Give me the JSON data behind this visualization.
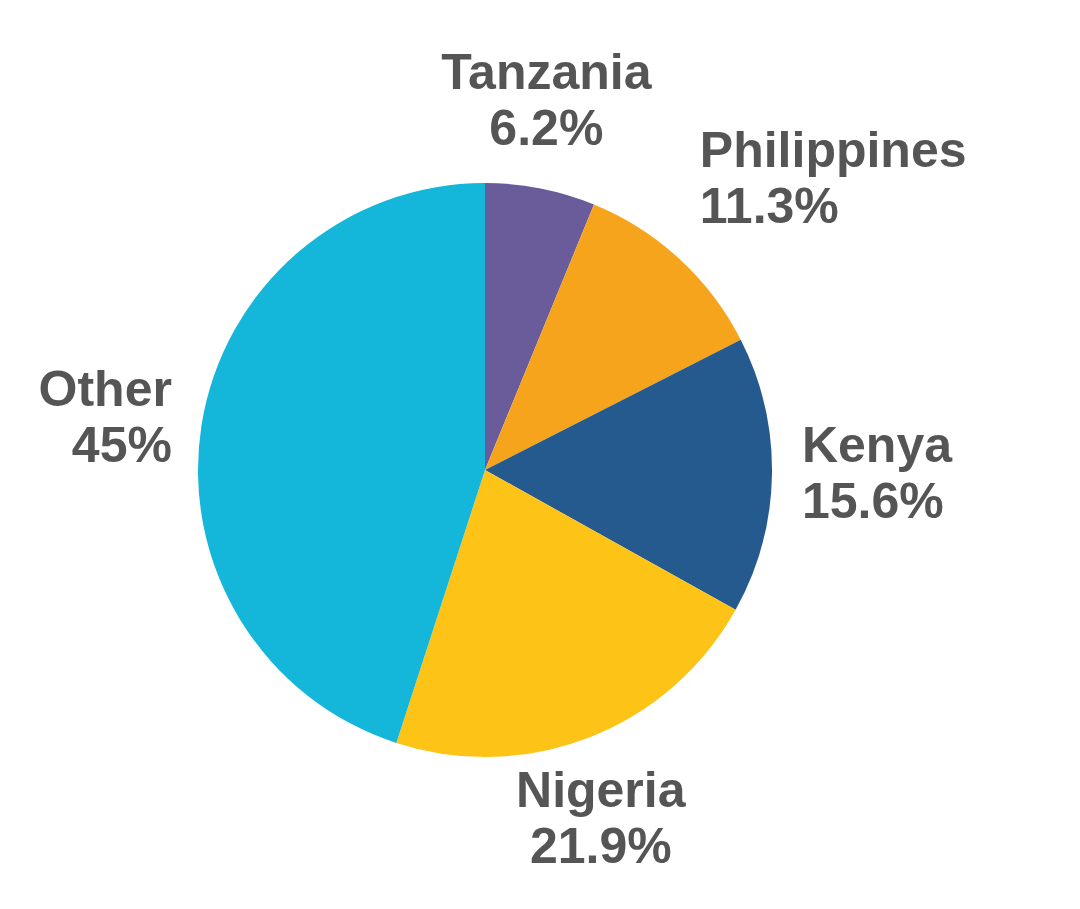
{
  "chart_data": {
    "type": "pie",
    "categories": [
      "Tanzania",
      "Philippines",
      "Kenya",
      "Nigeria",
      "Other"
    ],
    "values": [
      6.2,
      11.3,
      15.6,
      21.9,
      45
    ],
    "colors": [
      "#6a5b9a",
      "#f7a41d",
      "#255a8f",
      "#fdc316",
      "#14b6d9"
    ],
    "value_labels": [
      "6.2%",
      "11.3%",
      "15.6%",
      "21.9%",
      "45%"
    ]
  }
}
